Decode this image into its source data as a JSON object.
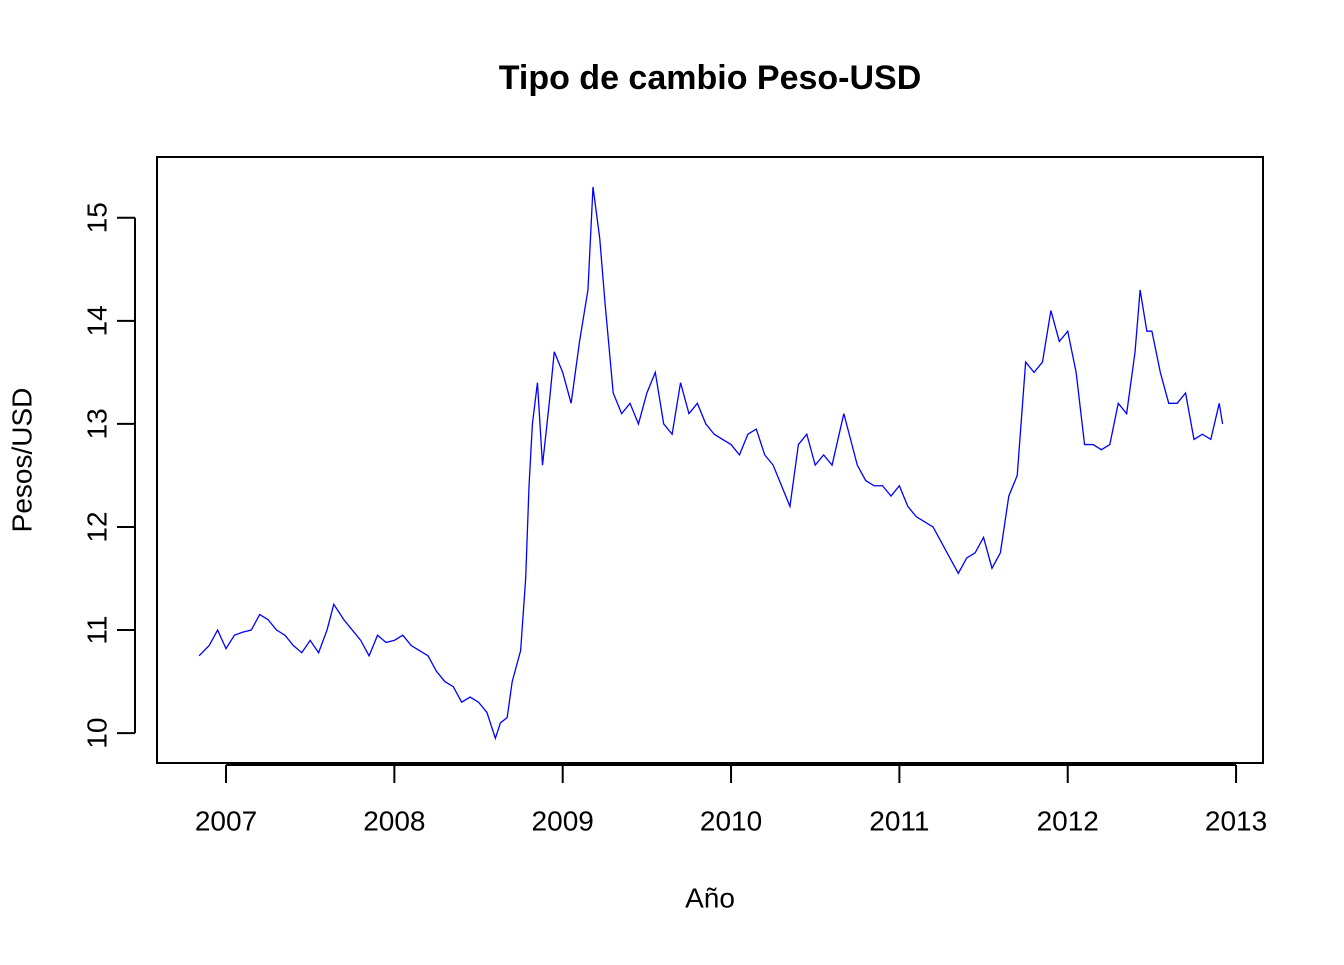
{
  "chart_data": {
    "type": "line",
    "title": "Tipo de cambio Peso-USD",
    "x_label": "Año",
    "y_label": "Pesos/USD",
    "x": [
      2006.84,
      2006.9,
      2006.95,
      2007.0,
      2007.05,
      2007.1,
      2007.15,
      2007.2,
      2007.25,
      2007.3,
      2007.35,
      2007.4,
      2007.45,
      2007.5,
      2007.55,
      2007.6,
      2007.64,
      2007.7,
      2007.75,
      2007.8,
      2007.85,
      2007.9,
      2007.95,
      2008.0,
      2008.05,
      2008.1,
      2008.15,
      2008.2,
      2008.25,
      2008.3,
      2008.35,
      2008.4,
      2008.45,
      2008.5,
      2008.55,
      2008.6,
      2008.63,
      2008.67,
      2008.7,
      2008.75,
      2008.78,
      2008.8,
      2008.82,
      2008.85,
      2008.88,
      2008.92,
      2008.95,
      2009.0,
      2009.05,
      2009.1,
      2009.15,
      2009.18,
      2009.22,
      2009.25,
      2009.3,
      2009.35,
      2009.4,
      2009.45,
      2009.5,
      2009.55,
      2009.6,
      2009.65,
      2009.7,
      2009.75,
      2009.8,
      2009.85,
      2009.9,
      2009.95,
      2010.0,
      2010.05,
      2010.1,
      2010.15,
      2010.2,
      2010.25,
      2010.3,
      2010.35,
      2010.4,
      2010.45,
      2010.5,
      2010.55,
      2010.6,
      2010.67,
      2010.75,
      2010.8,
      2010.85,
      2010.9,
      2010.95,
      2011.0,
      2011.05,
      2011.1,
      2011.15,
      2011.2,
      2011.25,
      2011.3,
      2011.35,
      2011.4,
      2011.45,
      2011.5,
      2011.55,
      2011.6,
      2011.65,
      2011.7,
      2011.75,
      2011.8,
      2011.85,
      2011.9,
      2011.95,
      2012.0,
      2012.05,
      2012.1,
      2012.15,
      2012.2,
      2012.25,
      2012.3,
      2012.35,
      2012.4,
      2012.43,
      2012.47,
      2012.5,
      2012.55,
      2012.6,
      2012.65,
      2012.7,
      2012.75,
      2012.8,
      2012.85,
      2012.9,
      2012.92
    ],
    "series": [
      {
        "name": "Pesos/USD",
        "color": "#0000ff",
        "values": [
          10.75,
          10.85,
          11.0,
          10.82,
          10.95,
          10.98,
          11.0,
          11.15,
          11.1,
          11.0,
          10.95,
          10.85,
          10.78,
          10.9,
          10.78,
          11.0,
          11.25,
          11.1,
          11.0,
          10.9,
          10.75,
          10.95,
          10.88,
          10.9,
          10.95,
          10.85,
          10.8,
          10.75,
          10.6,
          10.5,
          10.45,
          10.3,
          10.35,
          10.3,
          10.2,
          9.95,
          10.1,
          10.15,
          10.5,
          10.8,
          11.5,
          12.4,
          13.0,
          13.4,
          12.6,
          13.2,
          13.7,
          13.5,
          13.2,
          13.8,
          14.3,
          15.3,
          14.8,
          14.2,
          13.3,
          13.1,
          13.2,
          13.0,
          13.3,
          13.5,
          13.0,
          12.9,
          13.4,
          13.1,
          13.2,
          13.0,
          12.9,
          12.85,
          12.8,
          12.7,
          12.9,
          12.95,
          12.7,
          12.6,
          12.4,
          12.2,
          12.8,
          12.9,
          12.6,
          12.7,
          12.6,
          13.1,
          12.6,
          12.45,
          12.4,
          12.4,
          12.3,
          12.4,
          12.2,
          12.1,
          12.05,
          12.0,
          11.85,
          11.7,
          11.55,
          11.7,
          11.75,
          11.9,
          11.6,
          11.75,
          12.3,
          12.5,
          13.6,
          13.5,
          13.6,
          14.1,
          13.8,
          13.9,
          13.5,
          12.8,
          12.8,
          12.75,
          12.8,
          13.2,
          13.1,
          13.7,
          14.3,
          13.9,
          13.9,
          13.5,
          13.2,
          13.2,
          13.3,
          12.85,
          12.9,
          12.85,
          13.2,
          13.0
        ]
      }
    ],
    "xlim": [
      2006.59,
      2013.16
    ],
    "xticks": [
      2007,
      2008,
      2009,
      2010,
      2011,
      2012,
      2013
    ],
    "ylim": [
      9.71,
      15.59
    ],
    "yticks": [
      10,
      11,
      12,
      13,
      14,
      15
    ]
  }
}
